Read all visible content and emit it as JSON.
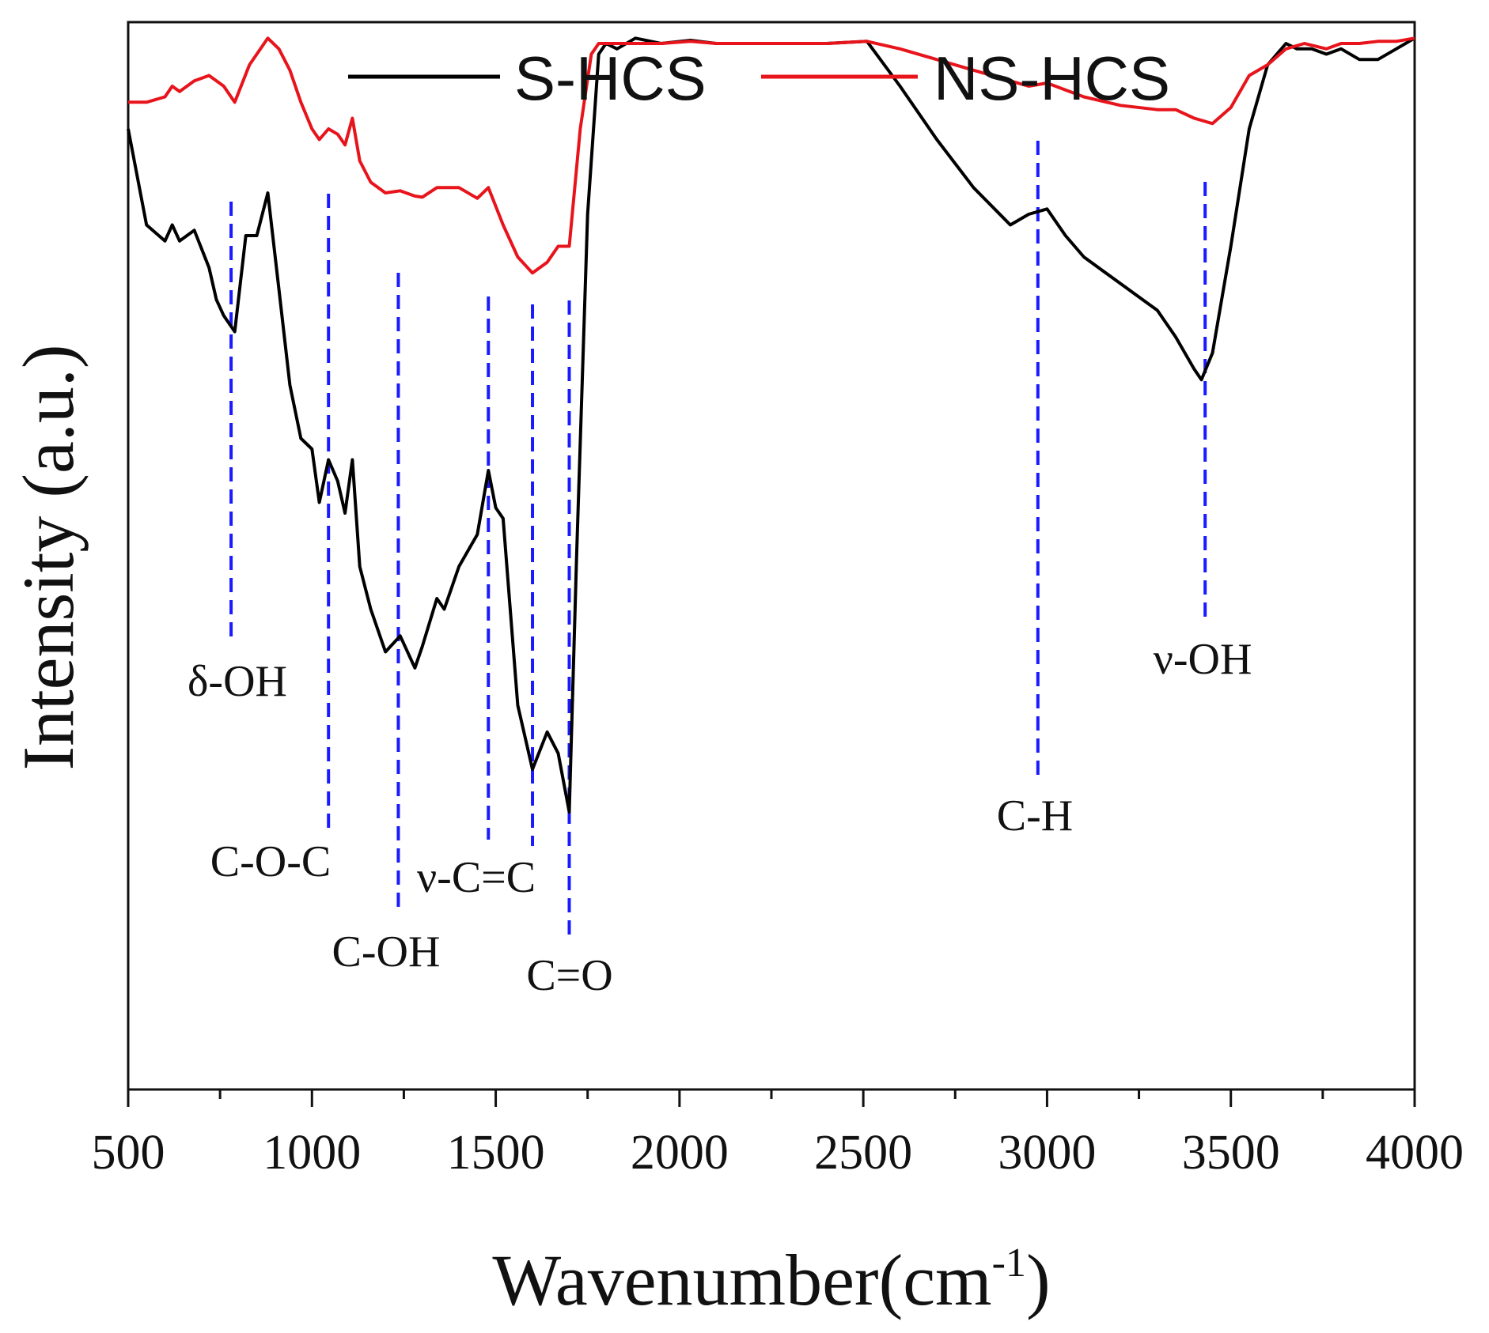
{
  "chart_data": {
    "type": "line",
    "title": "",
    "xlabel": "Wavenumber(cm",
    "xlabel_sup": "-1",
    "xlabel_close": ")",
    "ylabel": "Intensity (a.u.)",
    "xlim": [
      500,
      4000
    ],
    "ylim": [
      0,
      100
    ],
    "x_ticks": [
      "500",
      "1000",
      "1500",
      "2000",
      "2500",
      "3000",
      "3500",
      "4000"
    ],
    "x_tick_values": [
      500,
      1000,
      1500,
      2000,
      2500,
      3000,
      3500,
      4000
    ],
    "y_ticks_visible": false,
    "grid": false,
    "legend": {
      "position": "top-center",
      "entries": [
        "S-HCS",
        "NS-HCS"
      ]
    },
    "colors": {
      "S-HCS": "#000000",
      "NS-HCS": "#e8141b",
      "guide": "#1a1aff"
    },
    "series": [
      {
        "name": "S-HCS",
        "x": [
          500,
          550,
          600,
          620,
          640,
          680,
          720,
          740,
          760,
          790,
          820,
          850,
          880,
          910,
          940,
          970,
          1000,
          1020,
          1045,
          1070,
          1090,
          1110,
          1130,
          1160,
          1200,
          1240,
          1280,
          1300,
          1340,
          1360,
          1400,
          1450,
          1480,
          1500,
          1520,
          1560,
          1600,
          1640,
          1670,
          1700,
          1720,
          1750,
          1780,
          1800,
          1830,
          1880,
          1950,
          2030,
          2100,
          2200,
          2300,
          2400,
          2510,
          2600,
          2700,
          2800,
          2900,
          2950,
          3000,
          3050,
          3100,
          3200,
          3300,
          3350,
          3400,
          3420,
          3450,
          3500,
          3550,
          3600,
          3650,
          3680,
          3720,
          3760,
          3800,
          3850,
          3900,
          3950,
          4000
        ],
        "y": [
          90,
          81,
          79.5,
          81,
          79.5,
          80.5,
          77,
          74,
          72.5,
          71,
          80,
          80,
          84,
          75,
          66,
          61,
          60,
          55,
          59,
          57,
          54,
          59,
          49,
          45,
          41,
          42.5,
          39.5,
          41.5,
          46,
          45,
          49,
          52,
          58,
          54.5,
          53.5,
          36,
          30,
          33.5,
          31.5,
          26,
          50,
          82,
          97,
          98,
          97.5,
          98.5,
          98,
          98.3,
          98,
          98,
          98,
          98,
          98.2,
          94,
          89,
          84.5,
          81,
          82,
          82.5,
          80,
          78,
          75.5,
          73,
          70.5,
          67.5,
          66.5,
          69,
          79,
          90,
          96,
          98,
          97.5,
          97.5,
          97,
          97.5,
          96.5,
          96.5,
          97.5,
          98.5
        ]
      },
      {
        "name": "NS-HCS",
        "x": [
          500,
          550,
          600,
          620,
          640,
          680,
          720,
          760,
          790,
          830,
          880,
          910,
          940,
          970,
          1000,
          1020,
          1045,
          1070,
          1090,
          1110,
          1130,
          1160,
          1200,
          1240,
          1280,
          1300,
          1340,
          1400,
          1450,
          1480,
          1520,
          1560,
          1600,
          1640,
          1670,
          1700,
          1730,
          1760,
          1780,
          1800,
          1830,
          1880,
          1950,
          2030,
          2100,
          2200,
          2300,
          2400,
          2510,
          2600,
          2700,
          2800,
          2900,
          2950,
          3000,
          3100,
          3200,
          3300,
          3350,
          3400,
          3450,
          3500,
          3550,
          3600,
          3650,
          3700,
          3760,
          3800,
          3850,
          3900,
          3950,
          4000
        ],
        "y": [
          92.5,
          92.5,
          93,
          94,
          93.5,
          94.5,
          95,
          94,
          92.5,
          96,
          98.5,
          97.5,
          95.5,
          92.5,
          90,
          89,
          90,
          89.5,
          88.5,
          91,
          87,
          85,
          84,
          84.2,
          83.7,
          83.6,
          84.5,
          84.5,
          83.5,
          84.5,
          81,
          78,
          76.5,
          77.5,
          79,
          79,
          90,
          97,
          98,
          98,
          98,
          98,
          98,
          98.2,
          98,
          98,
          98,
          98,
          98.2,
          97.5,
          96.5,
          95.5,
          94.5,
          94,
          94.3,
          93,
          92.2,
          91.8,
          91.8,
          91,
          90.5,
          92,
          95,
          96,
          97.5,
          98,
          97.5,
          98,
          98,
          98.2,
          98.2,
          98.5
        ]
      }
    ],
    "annotations": [
      {
        "label": "δ-OH",
        "x": 780
      },
      {
        "label": "C-O-C",
        "x": 1045
      },
      {
        "label": "C-OH",
        "x": 1235
      },
      {
        "label": "ν-C=C",
        "x": 1480
      },
      {
        "label": "",
        "x": 1600
      },
      {
        "label": "C=O",
        "x": 1700
      },
      {
        "label": "C-H",
        "x": 2975
      },
      {
        "label": "ν-OH",
        "x": 3430
      }
    ]
  }
}
